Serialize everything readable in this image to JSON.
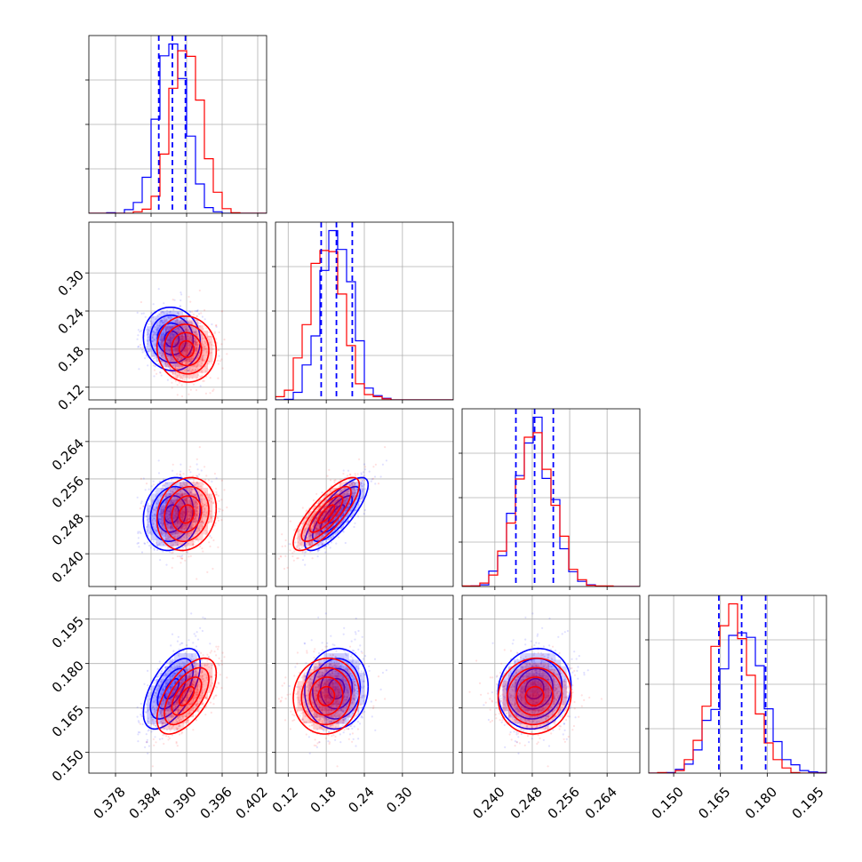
{
  "chart_data": {
    "type": "corner",
    "title": "",
    "grid": true,
    "parameters": [
      {
        "index": 0,
        "label": "",
        "range": [
          0.3735,
          0.4035
        ],
        "ticks": [
          "0.378",
          "0.384",
          "0.390",
          "0.396",
          "0.402"
        ]
      },
      {
        "index": 1,
        "label": "",
        "range": [
          0.1,
          0.38
        ],
        "ticks": [
          "0.12",
          "0.18",
          "0.24",
          "0.30"
        ]
      },
      {
        "index": 2,
        "label": "",
        "range": [
          0.233,
          0.271
        ],
        "ticks": [
          "0.240",
          "0.248",
          "0.256",
          "0.264"
        ]
      },
      {
        "index": 3,
        "label": "",
        "range": [
          0.142,
          0.199
        ],
        "ticks": [
          "0.150",
          "0.165",
          "0.180",
          "0.195"
        ],
        "range_y": [
          0.143,
          0.203
        ]
      }
    ],
    "series": [
      {
        "name": "",
        "color": "#0000ff",
        "mean": [
          0.3875,
          0.196,
          0.2485,
          0.1715
        ],
        "sigma": [
          0.0024,
          0.025,
          0.0039,
          0.0068
        ],
        "quantiles_16_50_84": [
          [
            0.3853,
            0.3876,
            0.3898
          ],
          [
            0.172,
            0.196,
            0.221
          ],
          [
            0.2445,
            0.2485,
            0.2525
          ],
          [
            0.1645,
            0.1718,
            0.1795
          ]
        ],
        "correlations": {
          "0-1": -0.05,
          "0-2": 0.15,
          "0-3": 0.6,
          "1-2": 0.8,
          "1-3": 0.05,
          "2-3": 0.1
        }
      },
      {
        "name": "",
        "color": "#ff0000",
        "mean": [
          0.39,
          0.18,
          0.2485,
          0.169
        ],
        "sigma": [
          0.0025,
          0.026,
          0.0039,
          0.0064
        ],
        "correlations": {
          "0-1": -0.05,
          "0-2": 0.15,
          "0-3": 0.6,
          "1-2": 0.8,
          "1-3": 0.05,
          "2-3": 0.05
        }
      }
    ]
  }
}
